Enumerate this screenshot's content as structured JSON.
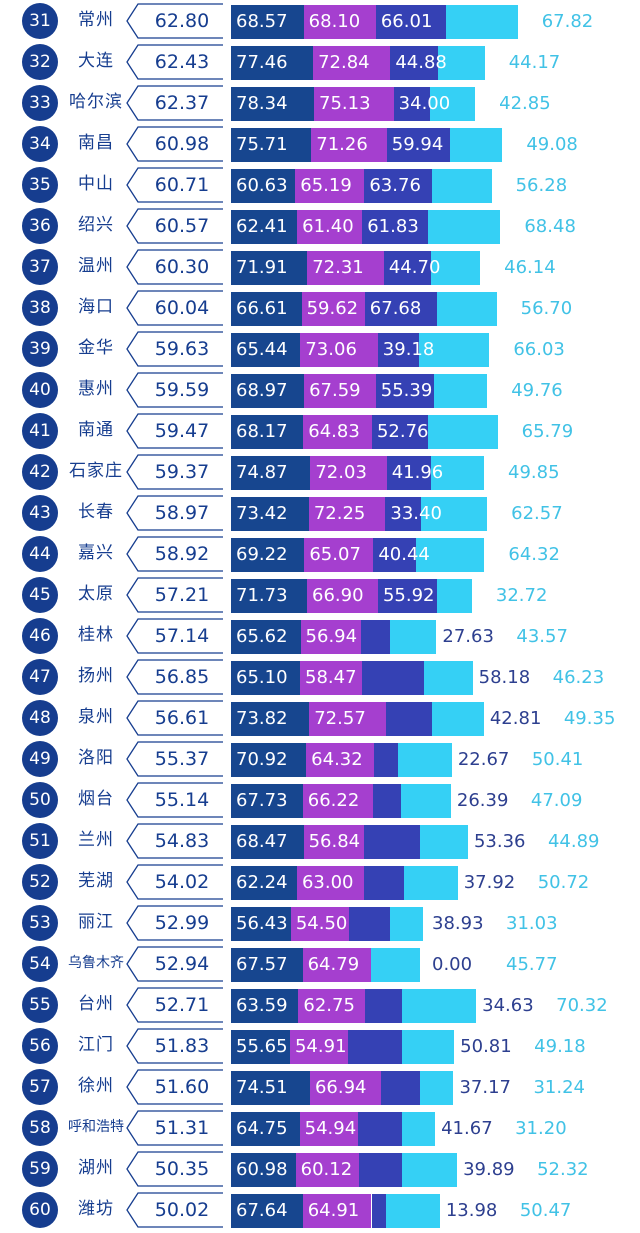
{
  "colors": {
    "rank_bg": "#163d8f",
    "city_text": "#163d8f",
    "bar_1": "#17468f",
    "bar_2": "#a53fcf",
    "bar_3": "#3541b4",
    "bar_4": "#35d0f5",
    "label_indigo": "#2d3f8f",
    "label_cyan": "#41c2e6"
  },
  "chart_data": {
    "type": "bar",
    "stacked": true,
    "columns": [
      "rank",
      "city",
      "total",
      "s1",
      "s2",
      "s3",
      "s4"
    ],
    "rows": [
      {
        "rank": "31",
        "city": "常州",
        "total": "62.80",
        "s1": 68.57,
        "s2": 68.1,
        "s3": 66.01,
        "s4": 67.82
      },
      {
        "rank": "32",
        "city": "大连",
        "total": "62.43",
        "s1": 77.46,
        "s2": 72.84,
        "s3": 44.88,
        "s4": 44.17
      },
      {
        "rank": "33",
        "city": "哈尔滨",
        "total": "62.37",
        "s1": 78.34,
        "s2": 75.13,
        "s3": 34.0,
        "s4": 42.85
      },
      {
        "rank": "34",
        "city": "南昌",
        "total": "60.98",
        "s1": 75.71,
        "s2": 71.26,
        "s3": 59.94,
        "s4": 49.08
      },
      {
        "rank": "35",
        "city": "中山",
        "total": "60.71",
        "s1": 60.63,
        "s2": 65.19,
        "s3": 63.76,
        "s4": 56.28
      },
      {
        "rank": "36",
        "city": "绍兴",
        "total": "60.57",
        "s1": 62.41,
        "s2": 61.4,
        "s3": 61.83,
        "s4": 68.48
      },
      {
        "rank": "37",
        "city": "温州",
        "total": "60.30",
        "s1": 71.91,
        "s2": 72.31,
        "s3": 44.7,
        "s4": 46.14
      },
      {
        "rank": "38",
        "city": "海口",
        "total": "60.04",
        "s1": 66.61,
        "s2": 59.62,
        "s3": 67.68,
        "s4": 56.7
      },
      {
        "rank": "39",
        "city": "金华",
        "total": "59.63",
        "s1": 65.44,
        "s2": 73.06,
        "s3": 39.18,
        "s4": 66.03
      },
      {
        "rank": "40",
        "city": "惠州",
        "total": "59.59",
        "s1": 68.97,
        "s2": 67.59,
        "s3": 55.39,
        "s4": 49.76
      },
      {
        "rank": "41",
        "city": "南通",
        "total": "59.47",
        "s1": 68.17,
        "s2": 64.83,
        "s3": 52.76,
        "s4": 65.79
      },
      {
        "rank": "42",
        "city": "石家庄",
        "total": "59.37",
        "s1": 74.87,
        "s2": 72.03,
        "s3": 41.96,
        "s4": 49.85
      },
      {
        "rank": "43",
        "city": "长春",
        "total": "58.97",
        "s1": 73.42,
        "s2": 72.25,
        "s3": 33.4,
        "s4": 62.57
      },
      {
        "rank": "44",
        "city": "嘉兴",
        "total": "58.92",
        "s1": 69.22,
        "s2": 65.07,
        "s3": 40.44,
        "s4": 64.32
      },
      {
        "rank": "45",
        "city": "太原",
        "total": "57.21",
        "s1": 71.73,
        "s2": 66.9,
        "s3": 55.92,
        "s4": 32.72
      },
      {
        "rank": "46",
        "city": "桂林",
        "total": "57.14",
        "s1": 65.62,
        "s2": 56.94,
        "s3": 27.63,
        "s4": 43.57
      },
      {
        "rank": "47",
        "city": "扬州",
        "total": "56.85",
        "s1": 65.1,
        "s2": 58.47,
        "s3": 58.18,
        "s4": 46.23
      },
      {
        "rank": "48",
        "city": "泉州",
        "total": "56.61",
        "s1": 73.82,
        "s2": 72.57,
        "s3": 42.81,
        "s4": 49.35
      },
      {
        "rank": "49",
        "city": "洛阳",
        "total": "55.37",
        "s1": 70.92,
        "s2": 64.32,
        "s3": 22.67,
        "s4": 50.41
      },
      {
        "rank": "50",
        "city": "烟台",
        "total": "55.14",
        "s1": 67.73,
        "s2": 66.22,
        "s3": 26.39,
        "s4": 47.09
      },
      {
        "rank": "51",
        "city": "兰州",
        "total": "54.83",
        "s1": 68.47,
        "s2": 56.84,
        "s3": 53.36,
        "s4": 44.89
      },
      {
        "rank": "52",
        "city": "芜湖",
        "total": "54.02",
        "s1": 62.24,
        "s2": 63.0,
        "s3": 37.92,
        "s4": 50.72
      },
      {
        "rank": "53",
        "city": "丽江",
        "total": "52.99",
        "s1": 56.43,
        "s2": 54.5,
        "s3": 38.93,
        "s4": 31.03
      },
      {
        "rank": "54",
        "city": "乌鲁木齐",
        "total": "52.94",
        "s1": 67.57,
        "s2": 64.79,
        "s3": 0.0,
        "s4": 45.77
      },
      {
        "rank": "55",
        "city": "台州",
        "total": "52.71",
        "s1": 63.59,
        "s2": 62.75,
        "s3": 34.63,
        "s4": 70.32
      },
      {
        "rank": "56",
        "city": "江门",
        "total": "51.83",
        "s1": 55.65,
        "s2": 54.91,
        "s3": 50.81,
        "s4": 49.18
      },
      {
        "rank": "57",
        "city": "徐州",
        "total": "51.60",
        "s1": 74.51,
        "s2": 66.94,
        "s3": 37.17,
        "s4": 31.24
      },
      {
        "rank": "58",
        "city": "呼和浩特",
        "total": "51.31",
        "s1": 64.75,
        "s2": 54.94,
        "s3": 41.67,
        "s4": 31.2
      },
      {
        "rank": "59",
        "city": "湖州",
        "total": "50.35",
        "s1": 60.98,
        "s2": 60.12,
        "s3": 39.89,
        "s4": 52.32
      },
      {
        "rank": "60",
        "city": "潍坊",
        "total": "50.02",
        "s1": 67.64,
        "s2": 64.91,
        "s3": 13.98,
        "s4": 50.47
      }
    ]
  }
}
